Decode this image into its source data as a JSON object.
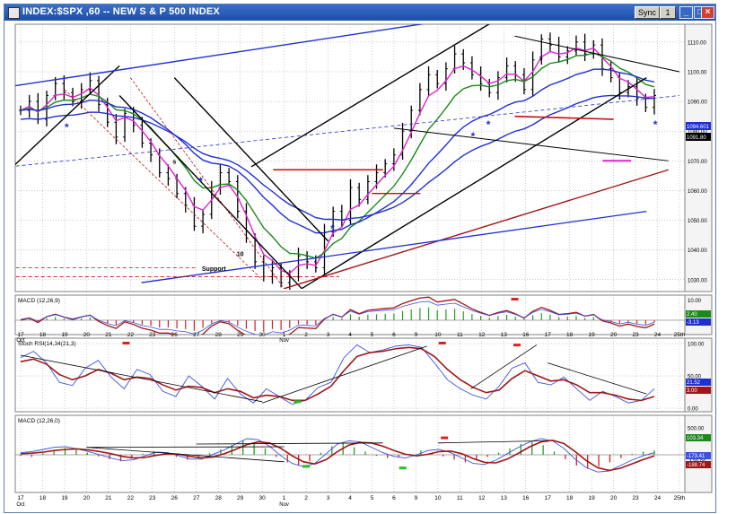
{
  "window": {
    "title": "INDEX:$SPX ,60 -- NEW S & P 500 INDEX",
    "sync_label": "Sync",
    "link_label": "1",
    "min_glyph": "_",
    "max_glyph": "□",
    "close_glyph": "×"
  },
  "colors": {
    "price_bar": "#000000",
    "ma_fast": "#e020d0",
    "ma_mid": "#1a8a1a",
    "ma_slow": "#2030d0",
    "channel_black": "#000000",
    "channel_blue": "#1f2fd0",
    "channel_red": "#c01010",
    "histogram_green": "#20a020",
    "histogram_red": "#d02020",
    "signal_red": "#a01515",
    "signal_blue": "#3a50e0"
  },
  "chart_data": [
    {
      "type": "line",
      "name": "price",
      "x_ticks": [
        "17",
        "18",
        "19",
        "20",
        "21",
        "22",
        "23",
        "26",
        "27",
        "28",
        "29",
        "30",
        "1",
        "2",
        "3",
        "4",
        "5",
        "6",
        "9",
        "10",
        "11",
        "12",
        "13",
        "16",
        "17",
        "18",
        "19",
        "20",
        "23",
        "24",
        "25th"
      ],
      "x_tick_sublabels": {
        "first": "Oct",
        "nov": "Nov"
      },
      "y_ticks": [
        "1110.00",
        "1100.00",
        "1090.00",
        "1080.00",
        "1070.00",
        "1060.00",
        "1050.00",
        "1040.00",
        "1030.00"
      ],
      "ylim": [
        1026,
        1116
      ],
      "last_price_labels": [
        "1094.601",
        "1091.80"
      ],
      "annotations": [
        {
          "text": "Support",
          "x": 8.8,
          "y": 1033
        },
        {
          "text": "s",
          "x": 7.0,
          "y": 1069
        },
        {
          "text": "s",
          "x": 23.7,
          "y": 1104
        },
        {
          "text": "10",
          "x": 10.0,
          "y": 1038
        },
        {
          "text": "*",
          "x": 2.1,
          "y": 1080
        },
        {
          "text": "*",
          "x": 8.2,
          "y": 1062
        },
        {
          "text": "*",
          "x": 14.2,
          "y": 1046
        },
        {
          "text": "*",
          "x": 20.6,
          "y": 1077
        },
        {
          "text": "*",
          "x": 21.3,
          "y": 1081
        },
        {
          "text": "*",
          "x": 28.9,
          "y": 1081
        }
      ],
      "closes": [
        1087,
        1090,
        1084,
        1092,
        1096,
        1093,
        1090,
        1094,
        1097,
        1089,
        1083,
        1078,
        1086,
        1082,
        1076,
        1072,
        1066,
        1064,
        1059,
        1055,
        1048,
        1052,
        1061,
        1066,
        1063,
        1053,
        1044,
        1036,
        1031,
        1034,
        1029,
        1031,
        1038,
        1036,
        1034,
        1046,
        1053,
        1050,
        1061,
        1057,
        1063,
        1066,
        1069,
        1072,
        1080,
        1087,
        1094,
        1099,
        1096,
        1101,
        1106,
        1103,
        1099,
        1096,
        1093,
        1098,
        1102,
        1099,
        1094,
        1104,
        1111,
        1109,
        1105,
        1107,
        1110,
        1106,
        1109,
        1101,
        1098,
        1093,
        1095,
        1091,
        1088,
        1092
      ]
    },
    {
      "type": "line",
      "name": "MACD (12,26,9)",
      "label": "MACD (12,26,9)",
      "y_ticks": [
        "10.00"
      ],
      "last_values": [
        "2.40",
        "-3.13"
      ],
      "signal_markers": [
        {
          "x": 22.5
        }
      ]
    },
    {
      "type": "line",
      "name": "Stoch RSI (14,34,21,3)",
      "label": "Stoch RSI(14,34(21,3)",
      "y_ticks": [
        "100.00",
        "50.00",
        "0.00"
      ],
      "ylim": [
        0,
        100
      ],
      "last_values": [
        "21.52",
        "3.00"
      ],
      "stoch_fast": [
        78,
        88,
        70,
        40,
        35,
        62,
        74,
        48,
        30,
        60,
        52,
        26,
        18,
        50,
        34,
        14,
        46,
        22,
        8,
        30,
        18,
        6,
        12,
        32,
        40,
        78,
        98,
        86,
        90,
        96,
        98,
        94,
        70,
        44,
        30,
        20,
        14,
        34,
        62,
        70,
        40,
        36,
        48,
        30,
        12,
        26,
        18,
        8,
        12,
        30
      ],
      "stoch_slow": [
        72,
        76,
        68,
        52,
        44,
        50,
        60,
        54,
        44,
        48,
        46,
        36,
        28,
        34,
        32,
        24,
        30,
        26,
        16,
        20,
        18,
        12,
        12,
        22,
        34,
        58,
        80,
        86,
        88,
        92,
        94,
        92,
        80,
        60,
        44,
        32,
        24,
        28,
        46,
        58,
        50,
        42,
        44,
        36,
        24,
        24,
        20,
        14,
        12,
        18
      ]
    },
    {
      "type": "bar",
      "name": "MACD (12,26,0)",
      "label": "MACD (12,26,0)",
      "y_ticks": [
        "500.00",
        "0.00",
        "-120.00"
      ],
      "last_values": [
        "103.34",
        "-173.41",
        "-188.74"
      ],
      "histogram": [
        -20,
        -40,
        30,
        80,
        120,
        90,
        40,
        -30,
        -80,
        -120,
        -60,
        20,
        70,
        40,
        -40,
        -90,
        -60,
        30,
        100,
        180,
        260,
        220,
        120,
        -40,
        -140,
        -200,
        -120,
        40,
        160,
        220,
        140,
        60,
        -20,
        -60,
        -40,
        20,
        80,
        40,
        -30,
        -90,
        -140,
        -100,
        -40,
        40,
        120,
        200,
        240,
        180,
        60,
        -80,
        -200,
        -260,
        -220,
        -140,
        -60,
        20,
        60,
        80
      ],
      "macd_line": [
        40,
        60,
        100,
        140,
        150,
        110,
        60,
        0,
        -60,
        -110,
        -90,
        -20,
        50,
        40,
        -20,
        -80,
        -80,
        10,
        90,
        200,
        300,
        280,
        160,
        -20,
        -160,
        -220,
        -160,
        20,
        200,
        260,
        240,
        140,
        40,
        -30,
        -60,
        0,
        80,
        100,
        40,
        -60,
        -160,
        -180,
        -100,
        20,
        140,
        240,
        300,
        260,
        120,
        -80,
        -240,
        -320,
        -300,
        -200,
        -100,
        -20,
        40
      ],
      "signal_line": [
        20,
        30,
        50,
        80,
        100,
        110,
        90,
        60,
        20,
        -30,
        -60,
        -50,
        -10,
        20,
        10,
        -30,
        -60,
        -40,
        20,
        100,
        190,
        240,
        220,
        120,
        -20,
        -130,
        -170,
        -90,
        60,
        180,
        230,
        220,
        160,
        80,
        10,
        -20,
        10,
        60,
        70,
        20,
        -70,
        -140,
        -150,
        -80,
        30,
        150,
        240,
        270,
        210,
        60,
        -110,
        -240,
        -290,
        -250,
        -170,
        -90,
        -20
      ]
    }
  ]
}
